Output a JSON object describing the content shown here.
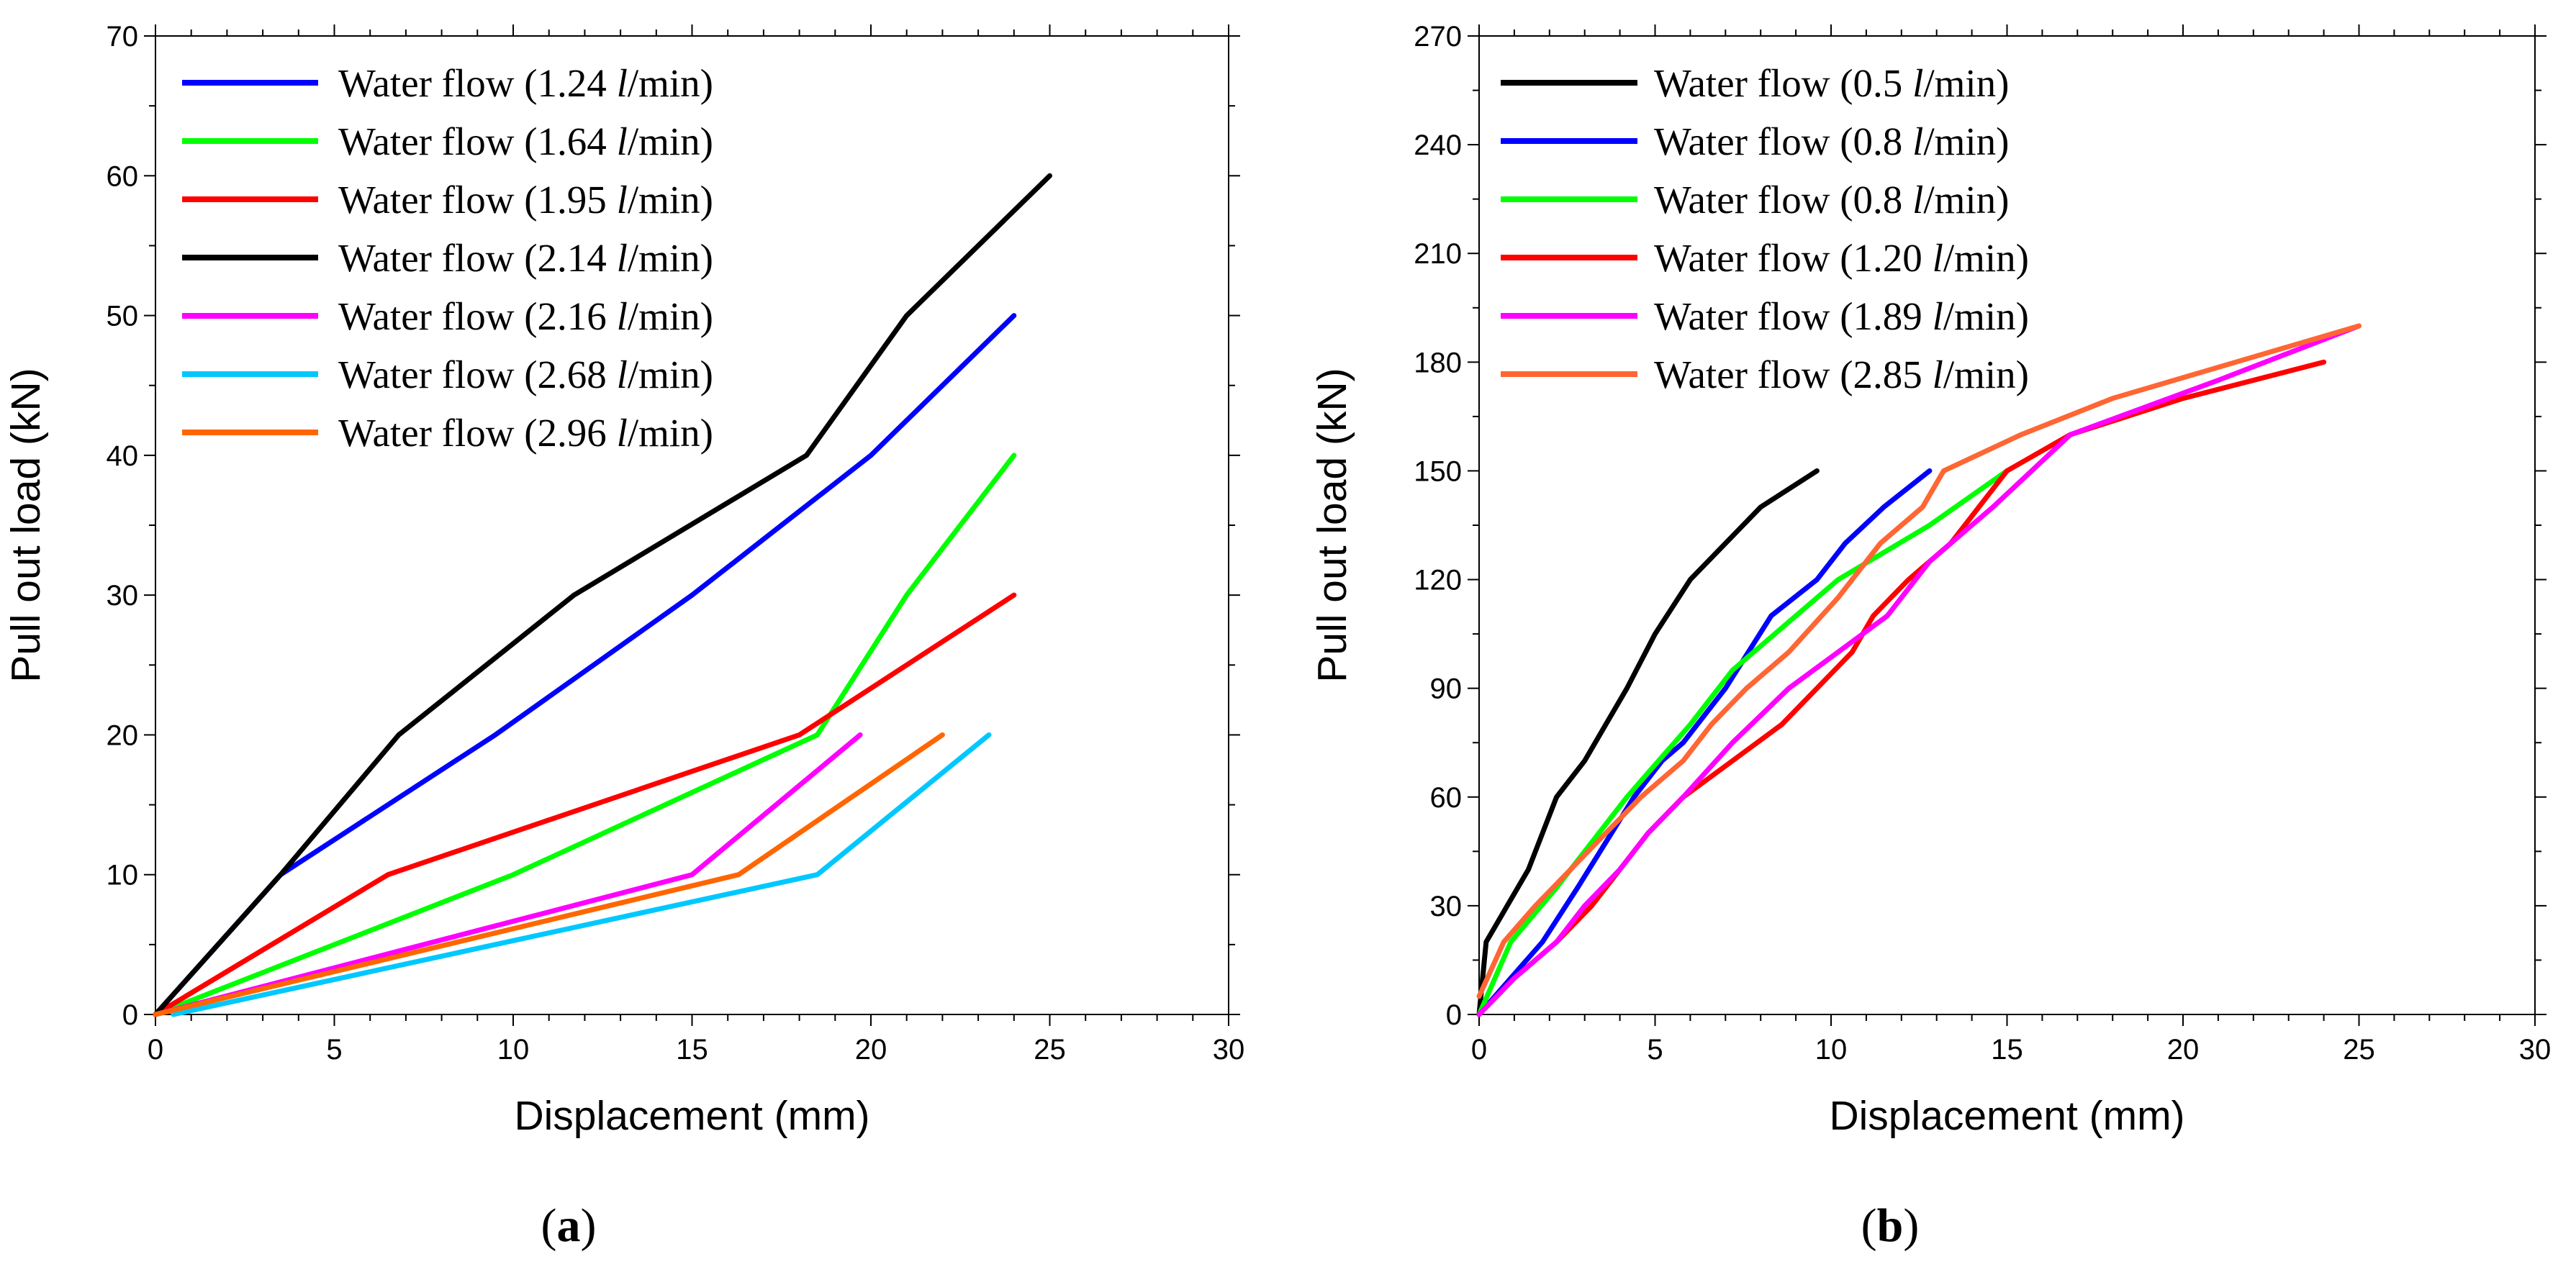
{
  "chart_data": [
    {
      "id": "a",
      "type": "line",
      "panel_label": "(a)",
      "panel_label_parts": {
        "open": "(",
        "letter": "a",
        "close": ")"
      },
      "xlabel": "Displacement (mm)",
      "ylabel": "Pull out load (kN)",
      "xlim": [
        0,
        30
      ],
      "ylim": [
        0,
        70
      ],
      "xticks": [
        0,
        5,
        10,
        15,
        20,
        25,
        30
      ],
      "yticks": [
        0,
        10,
        20,
        30,
        40,
        50,
        60,
        70
      ],
      "legend_position": "top-left",
      "grid": false,
      "series": [
        {
          "name": "Water flow (1.24 l/min)",
          "label_prefix": "Water flow (1.24 ",
          "label_unit": "l",
          "label_suffix": "/min)",
          "color": "#0000ff",
          "x": [
            0,
            3.5,
            9.5,
            15,
            20,
            24
          ],
          "y": [
            0,
            10,
            20,
            30,
            40,
            50
          ]
        },
        {
          "name": "Water flow (1.64 l/min)",
          "label_prefix": "Water flow (1.64 ",
          "label_unit": "l",
          "label_suffix": "/min)",
          "color": "#00ff00",
          "x": [
            0,
            10,
            18.5,
            21,
            24
          ],
          "y": [
            0,
            10,
            20,
            30,
            40
          ]
        },
        {
          "name": "Water flow (1.95 l/min)",
          "label_prefix": "Water flow (1.95 ",
          "label_unit": "l",
          "label_suffix": "/min)",
          "color": "#ff0000",
          "x": [
            0,
            6.5,
            18,
            24
          ],
          "y": [
            0,
            10,
            20,
            30
          ]
        },
        {
          "name": "Water flow (2.14 l/min)",
          "label_prefix": "Water flow (2.14 ",
          "label_unit": "l",
          "label_suffix": "/min)",
          "color": "#000000",
          "x": [
            0,
            3.5,
            6.8,
            11.7,
            18.2,
            21,
            25
          ],
          "y": [
            0,
            10,
            20,
            30,
            40,
            50,
            60
          ]
        },
        {
          "name": "Water flow (2.16 l/min)",
          "label_prefix": "Water flow (2.16 ",
          "label_unit": "l",
          "label_suffix": "/min)",
          "color": "#ff00ff",
          "x": [
            0,
            15,
            19.7
          ],
          "y": [
            0,
            10,
            20
          ]
        },
        {
          "name": "Water flow (2.68 l/min)",
          "label_prefix": "Water flow (2.68 ",
          "label_unit": "l",
          "label_suffix": "/min)",
          "color": "#00c8ff",
          "x": [
            0.5,
            18.5,
            23.3
          ],
          "y": [
            0,
            10,
            20
          ]
        },
        {
          "name": "Water flow (2.96 l/min)",
          "label_prefix": "Water flow (2.96 ",
          "label_unit": "l",
          "label_suffix": "/min)",
          "color": "#ff6600",
          "x": [
            0,
            16.3,
            22
          ],
          "y": [
            0,
            10,
            20
          ]
        }
      ]
    },
    {
      "id": "b",
      "type": "line",
      "panel_label": "(b)",
      "panel_label_parts": {
        "open": "(",
        "letter": "b",
        "close": ")"
      },
      "xlabel": "Displacement (mm)",
      "ylabel": "Pull out load (kN)",
      "xlim": [
        0,
        30
      ],
      "ylim": [
        0,
        270
      ],
      "xticks": [
        0,
        5,
        10,
        15,
        20,
        25,
        30
      ],
      "yticks": [
        0,
        30,
        60,
        90,
        120,
        150,
        180,
        210,
        240,
        270
      ],
      "legend_position": "top-left",
      "grid": false,
      "series": [
        {
          "name": "Water flow (0.5 l/min)",
          "label_prefix": "Water flow (0.5 ",
          "label_unit": "l",
          "label_suffix": "/min)",
          "color": "#000000",
          "x": [
            0,
            0.2,
            0.8,
            1.4,
            2.2,
            3.0,
            3.6,
            4.2,
            5.0,
            6.0,
            7.0,
            8.0,
            9.6
          ],
          "y": [
            0,
            20,
            30,
            40,
            60,
            70,
            80,
            90,
            105,
            120,
            130,
            140,
            150
          ]
        },
        {
          "name": "Water flow (0.8 l/min)",
          "label_prefix": "Water flow (0.8 ",
          "label_unit": "l",
          "label_suffix": "/min)",
          "color": "#0000ff",
          "x": [
            0,
            0.9,
            1.8,
            2.8,
            4.4,
            5.2,
            5.8,
            7.0,
            8.3,
            9.6,
            10.4,
            11.5,
            12.8
          ],
          "y": [
            0,
            10,
            20,
            35,
            60,
            70,
            75,
            90,
            110,
            120,
            130,
            140,
            150
          ]
        },
        {
          "name": "Water flow (0.8 l/min)",
          "label_prefix": "Water flow (0.8 ",
          "label_unit": "l",
          "label_suffix": "/min)",
          "color": "#00ff00",
          "x": [
            0,
            0.9,
            2.2,
            4.2,
            6.0,
            7.2,
            10.2,
            12.8,
            15.0
          ],
          "y": [
            0,
            20,
            35,
            60,
            80,
            95,
            120,
            135,
            150
          ]
        },
        {
          "name": "Water flow (1.20 l/min)",
          "label_prefix": "Water flow (1.20 ",
          "label_unit": "l",
          "label_suffix": "/min)",
          "color": "#ff0000",
          "x": [
            0,
            1.0,
            2.2,
            3.2,
            4.0,
            4.8,
            5.8,
            7.2,
            8.6,
            9.6,
            10.6,
            11.2,
            12.2,
            13.4,
            15.0,
            16.8,
            20.0,
            24.0
          ],
          "y": [
            0,
            10,
            20,
            30,
            40,
            50,
            60,
            70,
            80,
            90,
            100,
            110,
            120,
            130,
            150,
            160,
            170,
            180
          ]
        },
        {
          "name": "Water flow (1.89 l/min)",
          "label_prefix": "Water flow (1.89 ",
          "label_unit": "l",
          "label_suffix": "/min)",
          "color": "#ff00ff",
          "x": [
            0,
            1.0,
            2.2,
            3.0,
            4.0,
            4.8,
            5.8,
            7.2,
            8.8,
            10.2,
            11.6,
            12.8,
            14.6,
            16.8,
            21.0,
            25.0
          ],
          "y": [
            0,
            10,
            20,
            30,
            40,
            50,
            60,
            75,
            90,
            100,
            110,
            125,
            140,
            160,
            175,
            190
          ]
        },
        {
          "name": "Water flow (2.85 l/min)",
          "label_prefix": "Water flow (2.85 ",
          "label_unit": "l",
          "label_suffix": "/min)",
          "color": "#ff6633",
          "x": [
            0,
            0.7,
            1.6,
            2.6,
            3.6,
            4.6,
            5.8,
            6.6,
            7.6,
            8.8,
            10.2,
            11.4,
            12.6,
            13.2,
            15.4,
            18.0,
            21.5,
            25.0
          ],
          "y": [
            5,
            20,
            30,
            40,
            50,
            60,
            70,
            80,
            90,
            100,
            115,
            130,
            140,
            150,
            160,
            170,
            180,
            190
          ]
        }
      ]
    }
  ]
}
